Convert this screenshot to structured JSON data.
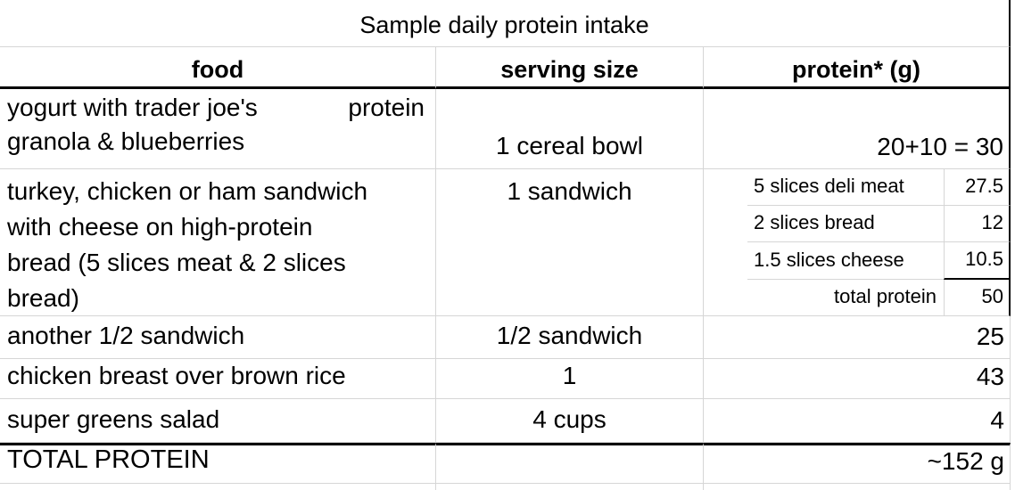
{
  "table": {
    "title": "Sample daily protein intake",
    "headers": {
      "food": "food",
      "serving": "serving size",
      "protein": "protein* (g)"
    },
    "rows": {
      "yogurt": {
        "food_line1_left": "yogurt with trader joe's",
        "food_line1_right": "protein",
        "food_line2": "granola & blueberries",
        "serving": "1 cereal bowl",
        "protein": "20+10 = 30"
      },
      "sandwich": {
        "food_lines": {
          "0": "turkey, chicken or ham sandwich",
          "1": "with cheese on high-protein",
          "2": "bread (5 slices meat & 2 slices",
          "3": "bread)"
        },
        "serving": "1 sandwich",
        "breakdown": {
          "0": {
            "label": "5 slices deli meat",
            "value": "27.5"
          },
          "1": {
            "label": "2 slices bread",
            "value": "12"
          },
          "2": {
            "label": "1.5 slices cheese",
            "value": "10.5"
          },
          "3": {
            "label": "total protein",
            "value": "50"
          }
        }
      },
      "half_sandwich": {
        "food": "another 1/2 sandwich",
        "serving": "1/2 sandwich",
        "protein": "25"
      },
      "chicken_rice": {
        "food": "chicken breast over brown rice",
        "serving": "1",
        "protein": "43"
      },
      "salad": {
        "food": "super greens salad",
        "serving": "4 cups",
        "protein": "4"
      }
    },
    "total": {
      "label": "TOTAL PROTEIN",
      "value": "~152 g"
    }
  },
  "colors": {
    "gridline": "#d6d6d6",
    "strong_border": "#000000",
    "text": "#000000",
    "background": "#ffffff"
  }
}
